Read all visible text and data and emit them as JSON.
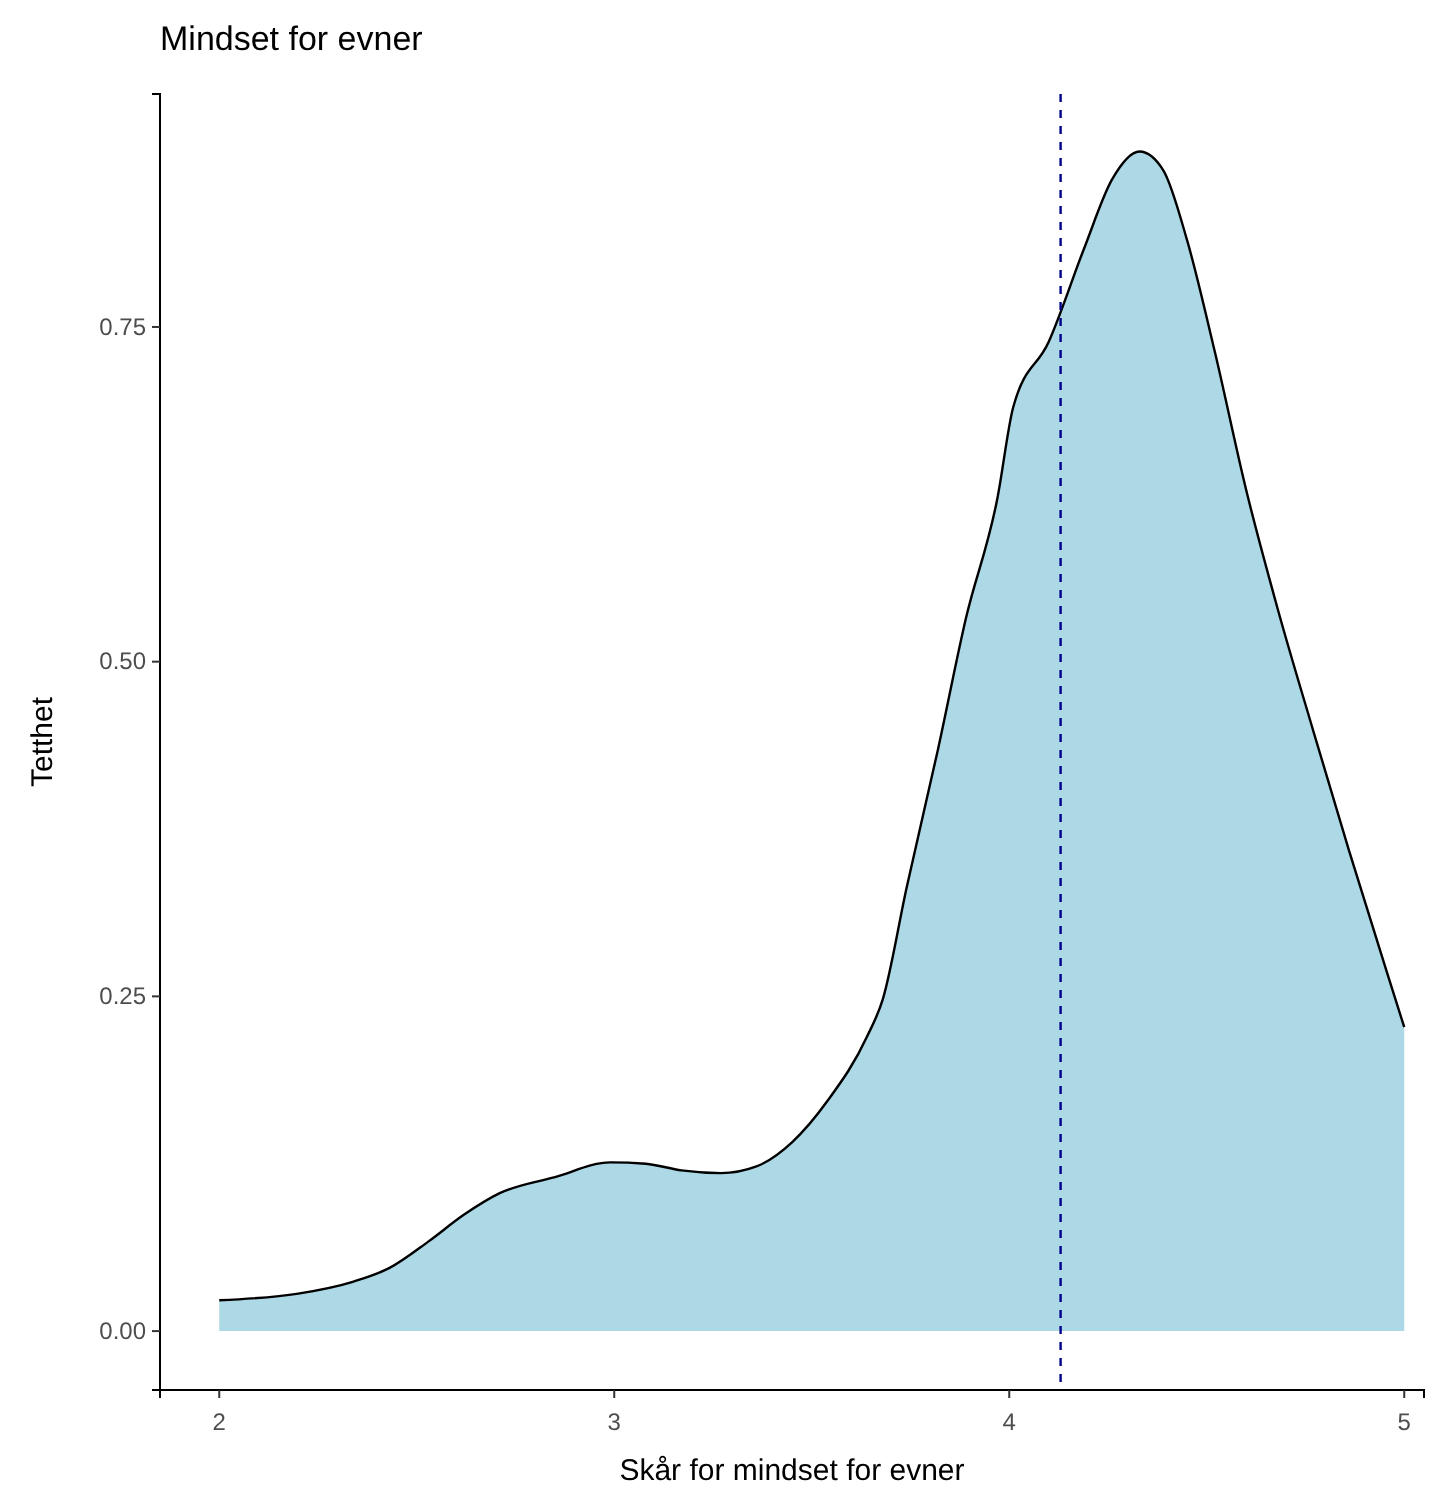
{
  "chart_data": {
    "type": "area",
    "title": "Mindset for evner",
    "xlabel": "Skår for mindset for evner",
    "ylabel": "Tetthet",
    "x": [
      2.0,
      2.2,
      2.34,
      2.43,
      2.53,
      2.62,
      2.71,
      2.85,
      2.99,
      3.08,
      3.17,
      3.27,
      3.36,
      3.45,
      3.54,
      3.64,
      3.68,
      3.74,
      3.82,
      3.89,
      3.97,
      4.01,
      4.1,
      4.19,
      4.26,
      4.33,
      4.39,
      4.45,
      4.52,
      4.6,
      4.68,
      4.77,
      4.86,
      4.97,
      5.0
    ],
    "series": [
      {
        "color": "#add8e6",
        "values": [
          0.023,
          0.028,
          0.037,
          0.047,
          0.067,
          0.087,
          0.103,
          0.115,
          0.126,
          0.125,
          0.12,
          0.118,
          0.123,
          0.141,
          0.172,
          0.22,
          0.248,
          0.331,
          0.435,
          0.532,
          0.622,
          0.69,
          0.739,
          0.809,
          0.86,
          0.881,
          0.867,
          0.815,
          0.732,
          0.628,
          0.539,
          0.448,
          0.359,
          0.255,
          0.227
        ]
      }
    ],
    "xlim": [
      1.85,
      5.05
    ],
    "xticks": [
      2,
      3,
      4,
      5
    ],
    "ylim": [
      -0.044,
      0.924
    ],
    "yticks": [
      {
        "value": 0,
        "label": "0.00"
      },
      {
        "value": 0.25,
        "label": "0.25"
      },
      {
        "value": 0.5,
        "label": "0.50"
      },
      {
        "value": 0.75,
        "label": "0.75"
      }
    ],
    "ref_lines": [
      {
        "axis": "x",
        "value": 4.13,
        "line_style": "dashed",
        "color": "#00008b"
      }
    ],
    "grid": false
  }
}
